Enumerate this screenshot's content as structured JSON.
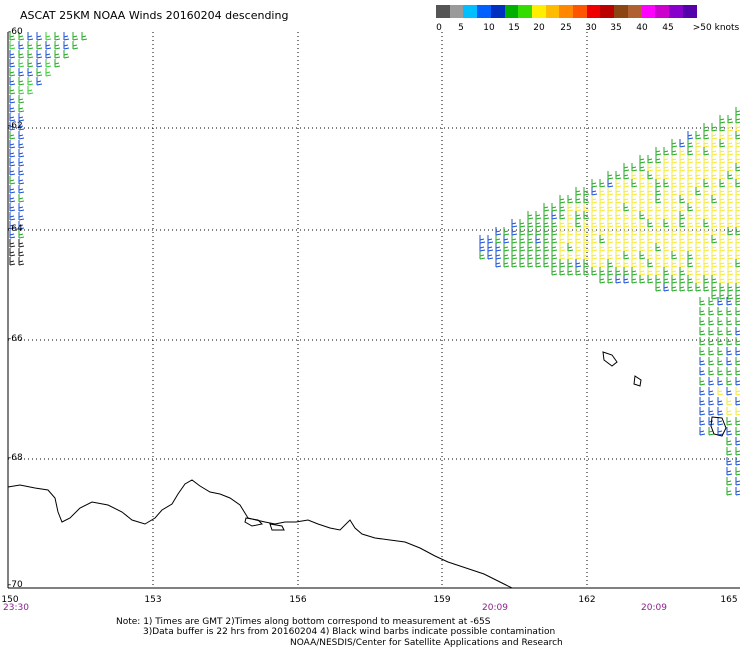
{
  "title": "ASCAT 25KM NOAA Winds 20160204 descending",
  "colorbar": {
    "swatches": [
      "#555555",
      "#9a9a9a",
      "#00bfff",
      "#0060ff",
      "#0030c0",
      "#00b000",
      "#33dd00",
      "#ffee00",
      "#ffbb00",
      "#ff8800",
      "#ff5500",
      "#ee0000",
      "#bb0000",
      "#8b4513",
      "#b06030",
      "#ff00ff",
      "#cc00cc",
      "#8800cc",
      "#5500aa"
    ],
    "labels": [
      "0",
      "5",
      "10",
      "15",
      "20",
      "25",
      "30",
      "35",
      "40",
      "45",
      ">50 knots"
    ]
  },
  "map": {
    "latitudes": [
      "-60",
      "-62",
      "-64",
      "-66",
      "-68",
      "-70"
    ],
    "longitudes": [
      "150",
      "153",
      "156",
      "159",
      "162",
      "165"
    ],
    "times": [
      "23:30",
      "20:09",
      "20:09"
    ]
  },
  "notes": [
    "Note: 1) Times are GMT 2)Times along bottom correspond to measurement at -65S",
    "3)Data buffer is 22 hrs from 20160204 4) Black wind barbs indicate possible contamination",
    "NOAA/NESDIS/Center for Satellite Applications and Research"
  ]
}
